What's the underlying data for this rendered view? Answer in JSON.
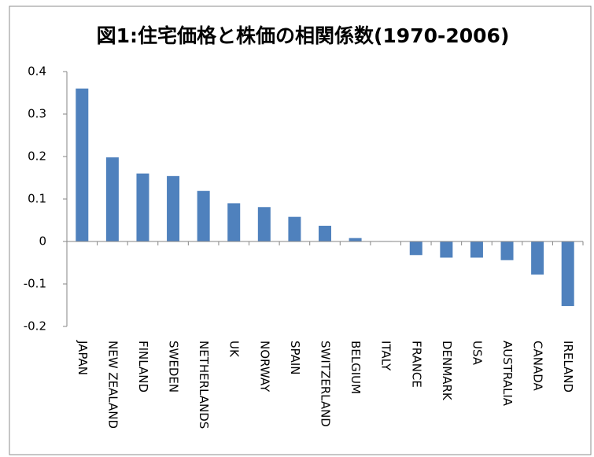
{
  "chart_data": {
    "type": "bar",
    "title": "図1:住宅価格と株価の相関係数(1970-2006)",
    "categories": [
      "JAPAN",
      "NEW ZEALAND",
      "FINLAND",
      "SWEDEN",
      "NETHERLANDS",
      "UK",
      "NORWAY",
      "SPAIN",
      "SWITZERLAND",
      "BELGIUM",
      "ITALY",
      "FRANCE",
      "DENMARK",
      "USA",
      "AUSTRALIA",
      "CANADA",
      "IRELAND"
    ],
    "values": [
      0.36,
      0.198,
      0.16,
      0.154,
      0.119,
      0.09,
      0.081,
      0.058,
      0.037,
      0.008,
      0.001,
      -0.032,
      -0.038,
      -0.038,
      -0.044,
      -0.078,
      -0.152
    ],
    "color": "#4f81bd",
    "ylim": [
      -0.2,
      0.4
    ],
    "yticks": [
      0.4,
      0.3,
      0.2,
      0.1,
      0,
      -0.1,
      -0.2
    ],
    "grid": false
  }
}
